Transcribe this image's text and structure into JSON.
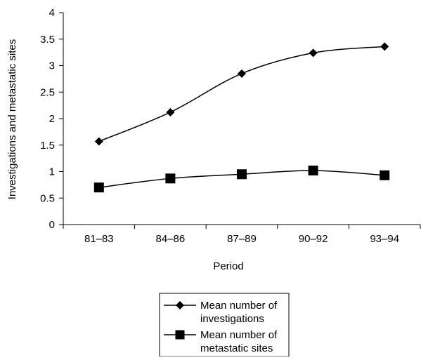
{
  "chart_data": {
    "type": "line",
    "title": "",
    "xlabel": "Period",
    "ylabel": "Investigations and metastatic sites",
    "categories": [
      "81–83",
      "84–86",
      "87–89",
      "90–92",
      "93–94"
    ],
    "ylim": [
      0,
      4
    ],
    "yticks": [
      "0",
      "0.5",
      "1",
      "1.5",
      "2",
      "2.5",
      "3",
      "3.5",
      "4"
    ],
    "grid": false,
    "legend_position": "bottom",
    "series": [
      {
        "name": "Mean number of investigations",
        "legend_lines": [
          "Mean number of",
          "investigations"
        ],
        "marker": "diamond",
        "color": "#000000",
        "values": [
          1.57,
          2.12,
          2.85,
          3.24,
          3.36
        ]
      },
      {
        "name": "Mean number of metastatic sites",
        "legend_lines": [
          "Mean number of",
          "metastatic sites"
        ],
        "marker": "square",
        "color": "#000000",
        "values": [
          0.7,
          0.87,
          0.95,
          1.02,
          0.93
        ]
      }
    ]
  }
}
